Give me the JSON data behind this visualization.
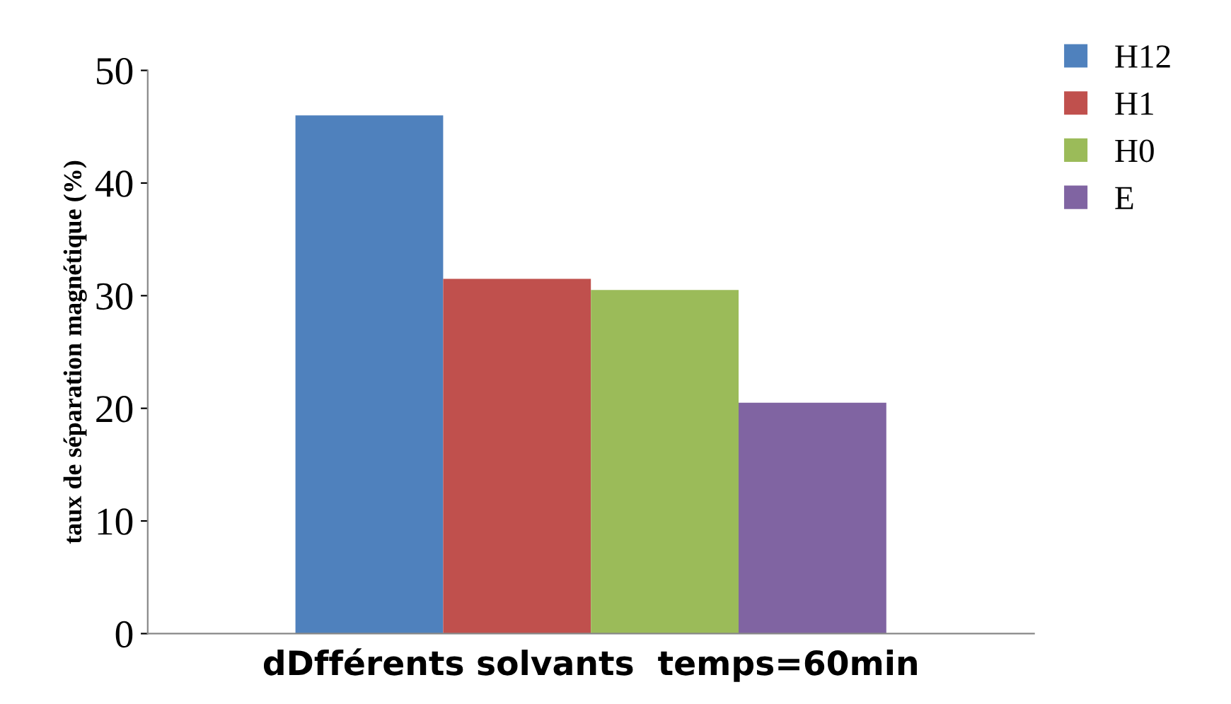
{
  "chart_data": {
    "type": "bar",
    "xlabel": "dDfférents solvants  temps=60min",
    "ylabel": "taux de séparation magnétique (%)",
    "categories": [
      null
    ],
    "series": [
      {
        "name": "H12",
        "color": "#4f81bd",
        "values": [
          46
        ]
      },
      {
        "name": "H1",
        "color": "#c0504d",
        "values": [
          31.5
        ]
      },
      {
        "name": "H0",
        "color": "#9bbb59",
        "values": [
          30.5
        ]
      },
      {
        "name": "E",
        "color": "#8064a2",
        "values": [
          20.5
        ]
      }
    ],
    "ylim": [
      0,
      50
    ],
    "yticks": [
      0,
      10,
      20,
      30,
      40,
      50
    ],
    "grid": false,
    "legend": "top right"
  }
}
